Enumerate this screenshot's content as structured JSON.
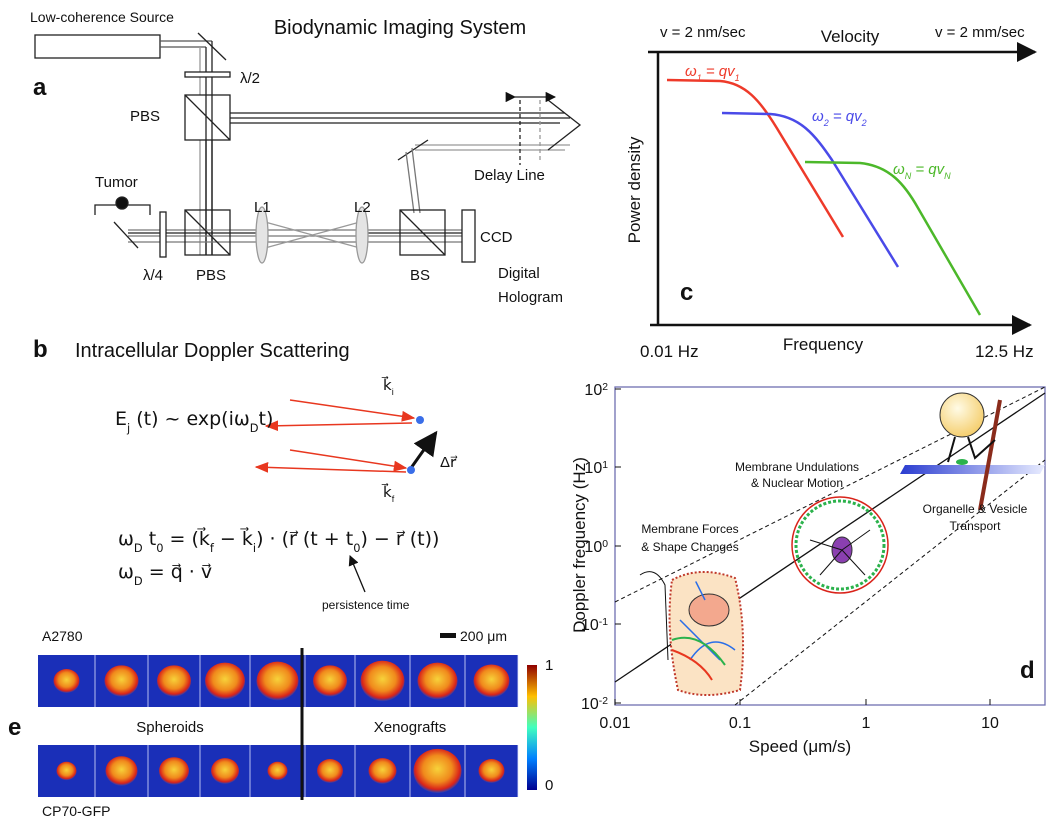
{
  "panel_a": {
    "letter": "a",
    "title": "Biodynamic Imaging System",
    "source": "Low-coherence Source",
    "half_wave": "λ/2",
    "quarter_wave": "λ/4",
    "pbs_top": "PBS",
    "pbs_bottom": "PBS",
    "tumor": "Tumor",
    "lens1": "L1",
    "lens2": "L2",
    "beam_splitter": "BS",
    "ccd": "CCD",
    "delay_line": "Delay Line",
    "hologram": [
      "Digital",
      "Hologram"
    ]
  },
  "panel_b": {
    "letter": "b",
    "title": "Intracellular Doppler Scattering",
    "field_eq": [
      "E",
      "j",
      " (t) ~ exp(iω",
      "D",
      "t)"
    ],
    "k_in": [
      "k⃗",
      "i"
    ],
    "k_out": [
      "k⃗",
      "f"
    ],
    "displacement": "Δr⃗",
    "phase_eq": [
      "ω",
      "D",
      " t",
      "0",
      " = (k⃗",
      "f",
      " − k⃗",
      "i",
      ") · (r⃗ (t + t",
      "0",
      ") − r⃗ (t))"
    ],
    "freq_eq": [
      "ω",
      "D",
      " = q⃗ · v⃗"
    ],
    "annotation": "persistence time"
  },
  "panel_c": {
    "letter": "c",
    "velocity_axis": {
      "left": "v = 2 nm/sec",
      "title": "Velocity",
      "right": "v = 2 mm/sec"
    },
    "y_label": "Power density",
    "frequency_axis": {
      "left": "0.01 Hz",
      "title": "Frequency",
      "right": "12.5 Hz"
    },
    "curves": [
      {
        "label": [
          "ω",
          "1",
          " = qv",
          "1"
        ],
        "color": "#ee3a2a"
      },
      {
        "label": [
          "ω",
          "2",
          " = qv",
          "2"
        ],
        "color": "#4a4ae8"
      },
      {
        "label": [
          "ω",
          "N",
          " = qv",
          "N"
        ],
        "color": "#4cb82a"
      }
    ]
  },
  "panel_d": {
    "letter": "d",
    "x_label": "Speed (μm/s)",
    "y_label": "Doppler frequency (Hz)",
    "xticks": [
      "0.01",
      "0.1",
      "1",
      "10"
    ],
    "yticks": [
      {
        "base": "10",
        "exp": "2"
      },
      {
        "base": "10",
        "exp": "1"
      },
      {
        "base": "10",
        "exp": "0"
      },
      {
        "base": "10",
        "exp": "-1"
      },
      {
        "base": "10",
        "exp": "-2"
      }
    ],
    "annotations": [
      [
        "Membrane Undulations",
        "& Nuclear Motion"
      ],
      [
        "Organelle & Vesicle",
        "Transport"
      ],
      [
        "Membrane Forces",
        "& Shape Changes"
      ]
    ]
  },
  "panel_e": {
    "letter": "e",
    "top_row": "A2780",
    "bottom_row": "CP70-GFP",
    "scale_bar": "200 μm",
    "groups": [
      "Spheroids",
      "Xenografts"
    ],
    "colorbar": [
      "1",
      "0"
    ]
  }
}
